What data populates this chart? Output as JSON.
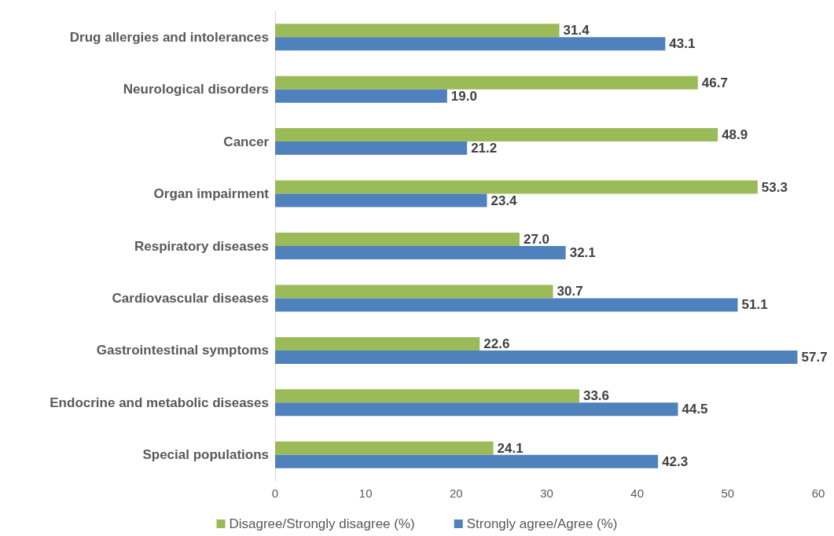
{
  "chart_data": {
    "type": "bar",
    "orientation": "horizontal",
    "categories": [
      "Drug allergies and intolerances",
      "Neurological disorders",
      "Cancer",
      "Organ impairment",
      "Respiratory diseases",
      "Cardiovascular diseases",
      "Gastrointestinal symptoms",
      "Endocrine and metabolic diseases",
      "Special populations"
    ],
    "series": [
      {
        "name": "Disagree/Strongly disagree (%)",
        "color": "#9bbb59",
        "values": [
          31.4,
          46.7,
          48.9,
          53.3,
          27.0,
          30.7,
          22.6,
          33.6,
          24.1
        ],
        "value_labels": [
          "31.4",
          "46.7",
          "48.9",
          "53.3",
          "27.0",
          "30.7",
          "22.6",
          "33.6",
          "24.1"
        ]
      },
      {
        "name": "Strongly agree/Agree (%)",
        "color": "#4f81bd",
        "values": [
          43.1,
          19.0,
          21.2,
          23.4,
          32.1,
          51.1,
          57.7,
          44.5,
          42.3
        ],
        "value_labels": [
          "43.1",
          "19.0",
          "21.2",
          "23.4",
          "32.1",
          "51.1",
          "57.7",
          "44.5",
          "42.3"
        ]
      }
    ],
    "xlim": [
      0,
      60
    ],
    "xticks": [
      0,
      10,
      20,
      30,
      40,
      50,
      60
    ],
    "legend": "bottom"
  }
}
